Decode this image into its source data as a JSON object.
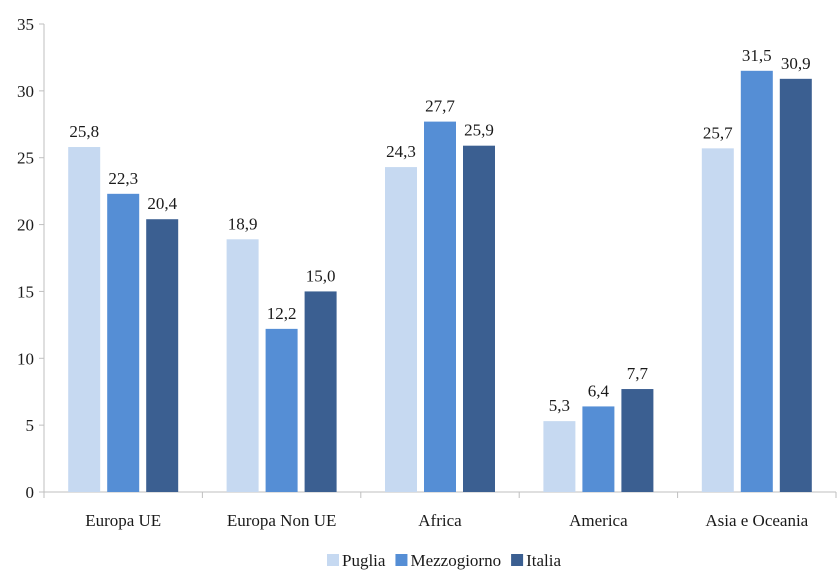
{
  "chart_data": {
    "type": "bar",
    "categories": [
      "Europa UE",
      "Europa Non UE",
      "Africa",
      "America",
      "Asia e Oceania"
    ],
    "series": [
      {
        "name": "Puglia",
        "color": "#c6d9f1",
        "values": [
          25.8,
          18.9,
          24.3,
          5.3,
          25.7
        ],
        "labels": [
          "25,8",
          "18,9",
          "24,3",
          "5,3",
          "25,7"
        ]
      },
      {
        "name": "Mezzogiorno",
        "color": "#558ed5",
        "values": [
          22.3,
          12.2,
          27.7,
          6.4,
          31.5
        ],
        "labels": [
          "22,3",
          "12,2",
          "27,7",
          "6,4",
          "31,5"
        ]
      },
      {
        "name": "Italia",
        "color": "#3b5f91",
        "values": [
          20.4,
          15.0,
          25.9,
          7.7,
          30.9
        ],
        "labels": [
          "20,4",
          "15,0",
          "25,9",
          "7,7",
          "30,9"
        ]
      }
    ],
    "ylim": [
      0,
      35
    ],
    "yticks": [
      0,
      5,
      10,
      15,
      20,
      25,
      30,
      35
    ],
    "title": "",
    "xlabel": "",
    "ylabel": "",
    "grid": false,
    "legend_position": "bottom"
  }
}
